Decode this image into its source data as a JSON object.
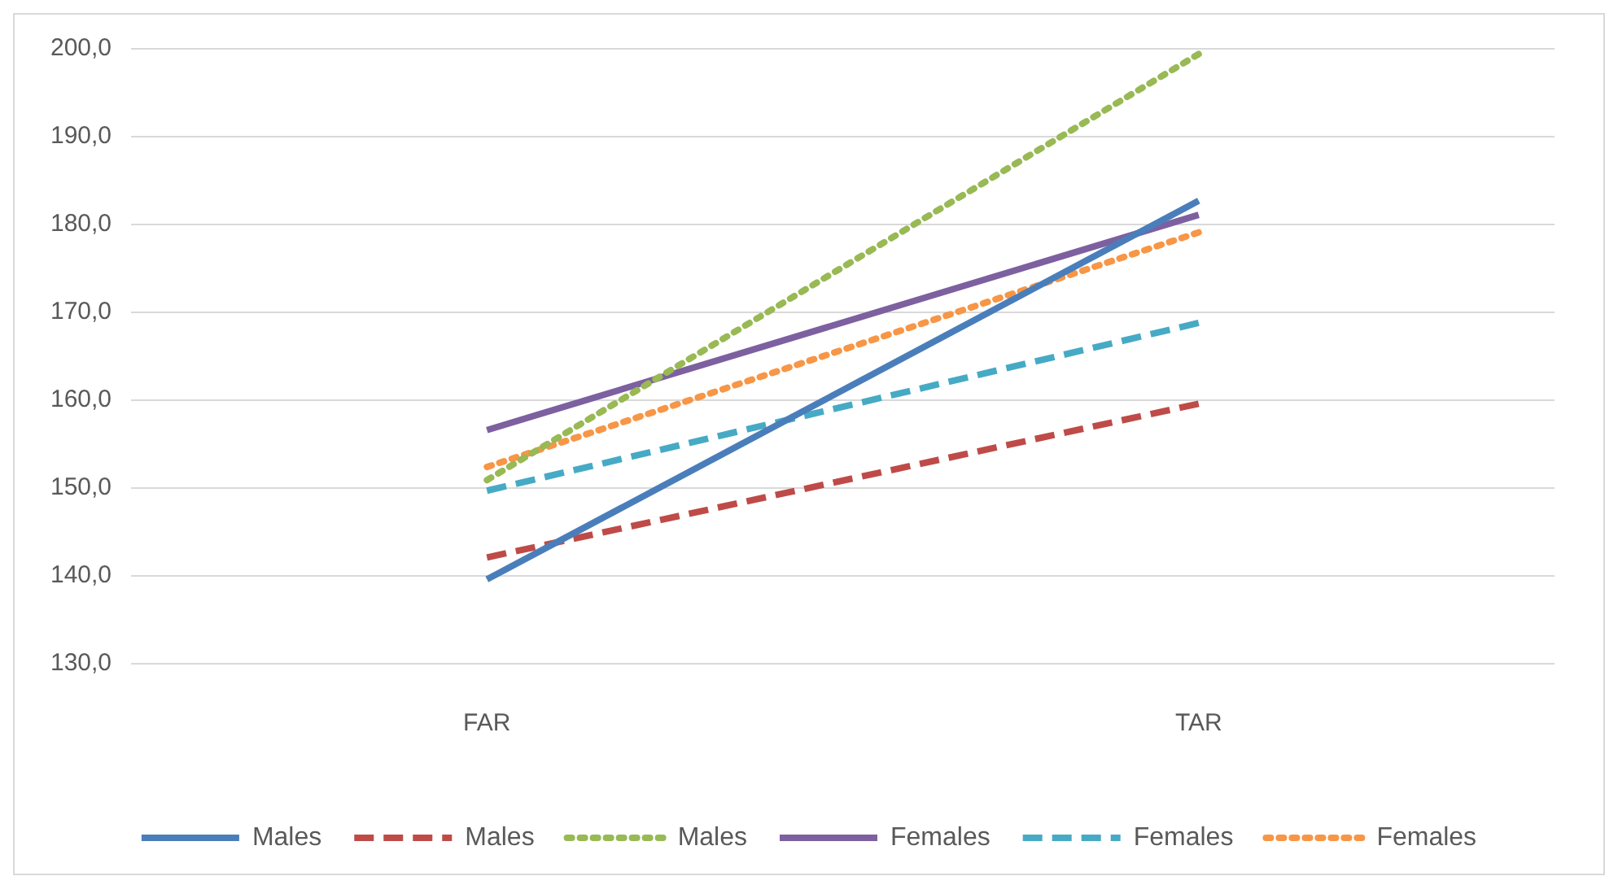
{
  "chart_data": {
    "type": "line",
    "categories": [
      "FAR",
      "TAR"
    ],
    "series": [
      {
        "name": "Males",
        "color": "#4a7ebb",
        "line_style": "solid",
        "values": [
          139.6,
          182.7
        ]
      },
      {
        "name": "Males",
        "color": "#be4b48",
        "line_style": "dashed",
        "values": [
          142.1,
          159.6
        ]
      },
      {
        "name": "Males",
        "color": "#98b954",
        "line_style": "dotted",
        "values": [
          150.9,
          199.4
        ]
      },
      {
        "name": "Females",
        "color": "#7d60a0",
        "line_style": "solid",
        "values": [
          156.6,
          181.1
        ]
      },
      {
        "name": "Females",
        "color": "#46aac5",
        "line_style": "dashed",
        "values": [
          149.7,
          168.8
        ]
      },
      {
        "name": "Females",
        "color": "#f79646",
        "line_style": "dotted",
        "values": [
          152.4,
          179.1
        ]
      }
    ],
    "ylim": [
      130,
      200
    ],
    "yticks": [
      {
        "value": 130,
        "label": "130,0"
      },
      {
        "value": 140,
        "label": "140,0"
      },
      {
        "value": 150,
        "label": "150,0"
      },
      {
        "value": 160,
        "label": "160,0"
      },
      {
        "value": 170,
        "label": "170,0"
      },
      {
        "value": 180,
        "label": "180,0"
      },
      {
        "value": 190,
        "label": "190,0"
      },
      {
        "value": 200,
        "label": "200,0"
      }
    ],
    "grid": "y",
    "legend": "bottom",
    "marker": "none"
  }
}
